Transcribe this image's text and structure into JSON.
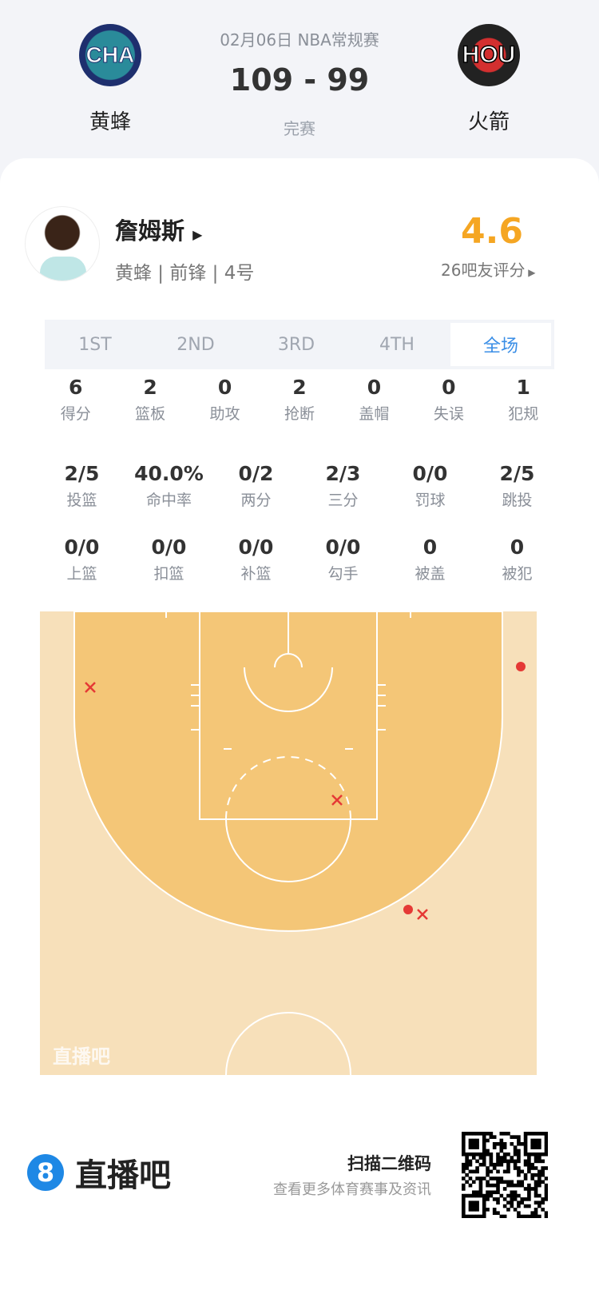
{
  "header": {
    "date_league": "02月06日 NBA常规赛",
    "score": "109 - 99",
    "status": "完赛",
    "home": {
      "abbr": "CHA",
      "name": "黄蜂"
    },
    "away": {
      "abbr": "HOU",
      "name": "火箭"
    }
  },
  "player": {
    "name": "詹姆斯",
    "info": "黄蜂 | 前锋 | 4号",
    "rating": "4.6",
    "rating_label": "26吧友评分",
    "rating_color": "#f5a623"
  },
  "tabs": [
    "1ST",
    "2ND",
    "3RD",
    "4TH",
    "全场"
  ],
  "active_tab": "全场",
  "stats_rows": [
    [
      {
        "v": "6",
        "l": "得分"
      },
      {
        "v": "2",
        "l": "篮板"
      },
      {
        "v": "0",
        "l": "助攻"
      },
      {
        "v": "2",
        "l": "抢断"
      },
      {
        "v": "0",
        "l": "盖帽"
      },
      {
        "v": "0",
        "l": "失误"
      },
      {
        "v": "1",
        "l": "犯规"
      }
    ],
    [
      {
        "v": "2/5",
        "l": "投篮"
      },
      {
        "v": "40.0%",
        "l": "命中率"
      },
      {
        "v": "0/2",
        "l": "两分"
      },
      {
        "v": "2/3",
        "l": "三分"
      },
      {
        "v": "0/0",
        "l": "罚球"
      },
      {
        "v": "2/5",
        "l": "跳投"
      }
    ],
    [
      {
        "v": "0/0",
        "l": "上篮"
      },
      {
        "v": "0/0",
        "l": "扣篮"
      },
      {
        "v": "0/0",
        "l": "补篮"
      },
      {
        "v": "0/0",
        "l": "勾手"
      },
      {
        "v": "0",
        "l": "被盖"
      },
      {
        "v": "0",
        "l": "被犯"
      }
    ]
  ],
  "court": {
    "watermark": "直播吧",
    "shots": [
      {
        "result": "miss",
        "zone": "left wing"
      },
      {
        "result": "miss",
        "zone": "top of key"
      },
      {
        "result": "miss",
        "zone": "right wing three"
      },
      {
        "result": "make",
        "zone": "right corner three"
      },
      {
        "result": "make",
        "zone": "right wing three"
      }
    ]
  },
  "footer": {
    "brand": "直播吧",
    "brand_icon": "8",
    "scan": "扫描二维码",
    "sub": "查看更多体育赛事及资讯",
    "accent": "#1e88e5"
  }
}
